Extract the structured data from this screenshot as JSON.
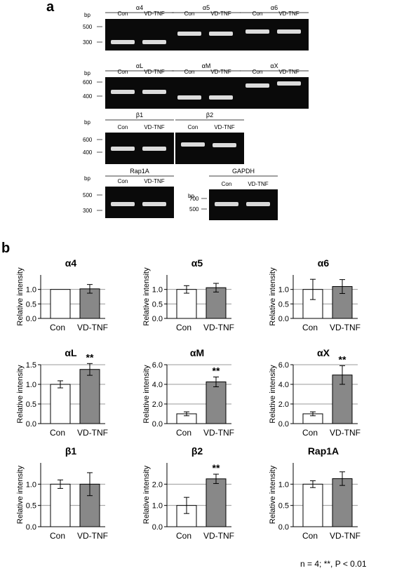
{
  "panels": {
    "a": "a",
    "b": "b"
  },
  "gels": {
    "bp_label": "bp",
    "lanes": [
      "Con",
      "VD-TNF"
    ],
    "rows": [
      {
        "genes": [
          "α4",
          "α5",
          "α6"
        ],
        "ladder": [
          "500",
          "300"
        ]
      },
      {
        "genes": [
          "αL",
          "αM",
          "αX"
        ],
        "ladder": [
          "600",
          "400"
        ]
      },
      {
        "genes": [
          "β1",
          "β2"
        ],
        "ladder": [
          "600",
          "400"
        ]
      },
      {
        "genes": [
          "Rap1A"
        ],
        "ladder": [
          "500",
          "300"
        ]
      }
    ],
    "gapdh": {
      "gene": "GAPDH",
      "ladder": [
        "700",
        "500"
      ]
    }
  },
  "chart_data": [
    {
      "type": "bar",
      "title": "α4",
      "ylabel": "Relative intensity",
      "categories": [
        "Con",
        "VD-TNF"
      ],
      "values": [
        1.0,
        1.02
      ],
      "errors": [
        0.0,
        0.15
      ],
      "ylim": [
        0,
        1.5
      ],
      "yticks": [
        "0.0",
        "0.5",
        "1.0"
      ],
      "significance": [
        ""
      ],
      "colors": [
        "#ffffff",
        "#888888"
      ]
    },
    {
      "type": "bar",
      "title": "α5",
      "ylabel": "Relative intensity",
      "categories": [
        "Con",
        "VD-TNF"
      ],
      "values": [
        1.0,
        1.06
      ],
      "errors": [
        0.13,
        0.15
      ],
      "ylim": [
        0,
        1.5
      ],
      "yticks": [
        "0.0",
        "0.5",
        "1.0"
      ],
      "significance": [
        ""
      ],
      "colors": [
        "#ffffff",
        "#888888"
      ]
    },
    {
      "type": "bar",
      "title": "α6",
      "ylabel": "Relative intensity",
      "categories": [
        "Con",
        "VD-TNF"
      ],
      "values": [
        1.0,
        1.1
      ],
      "errors": [
        0.35,
        0.24
      ],
      "ylim": [
        0,
        1.5
      ],
      "yticks": [
        "0.0",
        "0.5",
        "1.0"
      ],
      "significance": [
        ""
      ],
      "colors": [
        "#ffffff",
        "#888888"
      ]
    },
    {
      "type": "bar",
      "title": "αL",
      "ylabel": "Relative intensity",
      "categories": [
        "Con",
        "VD-TNF"
      ],
      "values": [
        1.0,
        1.38
      ],
      "errors": [
        0.09,
        0.15
      ],
      "ylim": [
        0,
        1.5
      ],
      "yticks": [
        "0.0",
        "0.5",
        "1.0",
        "1.5"
      ],
      "significance": [
        "**"
      ],
      "colors": [
        "#ffffff",
        "#888888"
      ]
    },
    {
      "type": "bar",
      "title": "αM",
      "ylabel": "Relative intensity",
      "categories": [
        "Con",
        "VD-TNF"
      ],
      "values": [
        1.0,
        4.25
      ],
      "errors": [
        0.2,
        0.5
      ],
      "ylim": [
        0,
        6.0
      ],
      "yticks": [
        "0.0",
        "2.0",
        "4.0",
        "6.0"
      ],
      "significance": [
        "**"
      ],
      "colors": [
        "#ffffff",
        "#888888"
      ]
    },
    {
      "type": "bar",
      "title": "αX",
      "ylabel": "Relative intensity",
      "categories": [
        "Con",
        "VD-TNF"
      ],
      "values": [
        1.0,
        4.95
      ],
      "errors": [
        0.2,
        0.95
      ],
      "ylim": [
        0,
        6.0
      ],
      "yticks": [
        "0.0",
        "2.0",
        "4.0",
        "6.0"
      ],
      "significance": [
        "**"
      ],
      "colors": [
        "#ffffff",
        "#888888"
      ]
    },
    {
      "type": "bar",
      "title": "β1",
      "ylabel": "Relative intensity",
      "categories": [
        "Con",
        "VD-TNF"
      ],
      "values": [
        1.0,
        1.0
      ],
      "errors": [
        0.1,
        0.27
      ],
      "ylim": [
        0,
        1.5
      ],
      "yticks": [
        "0.0",
        "0.5",
        "1.0"
      ],
      "significance": [
        ""
      ],
      "colors": [
        "#ffffff",
        "#888888"
      ]
    },
    {
      "type": "bar",
      "title": "β2",
      "ylabel": "Relative intensity",
      "categories": [
        "Con",
        "VD-TNF"
      ],
      "values": [
        1.0,
        2.25
      ],
      "errors": [
        0.38,
        0.22
      ],
      "ylim": [
        0,
        3.0
      ],
      "yticks": [
        "0.0",
        "1.0",
        "2.0"
      ],
      "significance": [
        "**"
      ],
      "colors": [
        "#ffffff",
        "#888888"
      ]
    },
    {
      "type": "bar",
      "title": "Rap1A",
      "ylabel": "Relative intensity",
      "categories": [
        "Con",
        "VD-TNF"
      ],
      "values": [
        1.0,
        1.13
      ],
      "errors": [
        0.08,
        0.16
      ],
      "ylim": [
        0,
        1.5
      ],
      "yticks": [
        "0.0",
        "0.5",
        "1.0"
      ],
      "significance": [
        ""
      ],
      "colors": [
        "#ffffff",
        "#888888"
      ]
    }
  ],
  "footnote": "n = 4; **, P < 0.01"
}
